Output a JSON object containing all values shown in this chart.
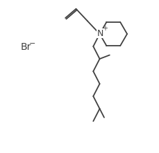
{
  "background": "#ffffff",
  "line_color": "#404040",
  "line_width": 1.3,
  "text_color": "#404040",
  "font_size": 9,
  "br_label": "Br",
  "n_label": "N",
  "plus_label": "+",
  "minus_label": "−",
  "figsize": [
    2.3,
    2.21
  ],
  "dpi": 100,
  "xlim": [
    0,
    10
  ],
  "ylim": [
    0,
    10
  ]
}
